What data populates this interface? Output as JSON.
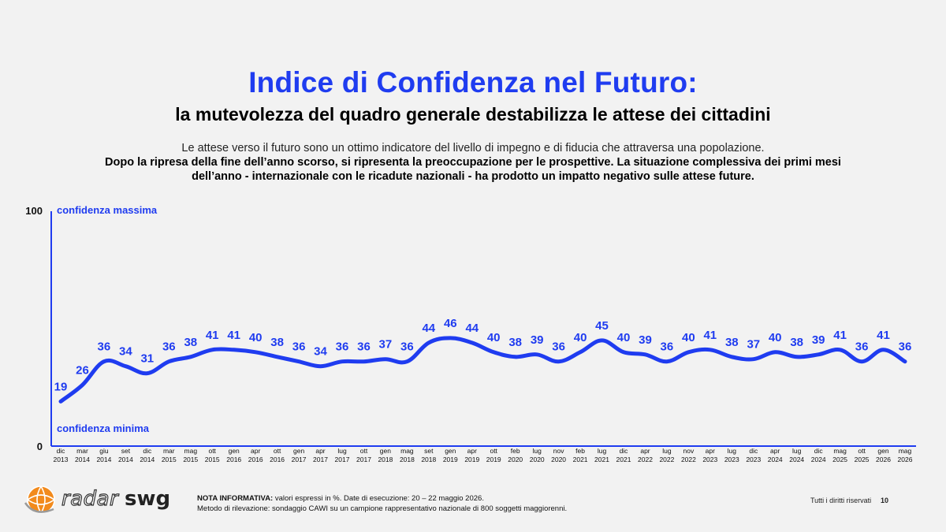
{
  "header": {
    "title": "Indice di Confidenza nel Futuro:",
    "subtitle": "la mutevolezza del quadro generale destabilizza le attese dei cittadini",
    "intro_line1": "Le attese verso il futuro sono un ottimo indicatore del livello di impegno e di fiducia che attraversa una popolazione.",
    "intro_line2": "Dopo la ripresa della fine dell’anno scorso, si ripresenta la preoccupazione per le prospettive. La situazione complessiva dei primi mesi",
    "intro_line3": "dell’anno - internazionale con le ricadute nazionali - ha prodotto un impatto negativo sulle attese future."
  },
  "chart_data": {
    "type": "line",
    "ylim": [
      0,
      100
    ],
    "y_ticks": [
      "0",
      "100"
    ],
    "annotations": {
      "top": "confidenza massima",
      "bottom": "confidenza minima"
    },
    "categories": [
      [
        "dic",
        "2013"
      ],
      [
        "mar",
        "2014"
      ],
      [
        "giu",
        "2014"
      ],
      [
        "set",
        "2014"
      ],
      [
        "dic",
        "2014"
      ],
      [
        "mar",
        "2015"
      ],
      [
        "mag",
        "2015"
      ],
      [
        "ott",
        "2015"
      ],
      [
        "gen",
        "2016"
      ],
      [
        "apr",
        "2016"
      ],
      [
        "ott",
        "2016"
      ],
      [
        "gen",
        "2017"
      ],
      [
        "apr",
        "2017"
      ],
      [
        "lug",
        "2017"
      ],
      [
        "ott",
        "2017"
      ],
      [
        "gen",
        "2018"
      ],
      [
        "mag",
        "2018"
      ],
      [
        "set",
        "2018"
      ],
      [
        "gen",
        "2019"
      ],
      [
        "apr",
        "2019"
      ],
      [
        "ott",
        "2019"
      ],
      [
        "feb",
        "2020"
      ],
      [
        "lug",
        "2020"
      ],
      [
        "nov",
        "2020"
      ],
      [
        "feb",
        "2021"
      ],
      [
        "lug",
        "2021"
      ],
      [
        "dic",
        "2021"
      ],
      [
        "apr",
        "2022"
      ],
      [
        "lug",
        "2022"
      ],
      [
        "nov",
        "2022"
      ],
      [
        "apr",
        "2023"
      ],
      [
        "lug",
        "2023"
      ],
      [
        "dic",
        "2023"
      ],
      [
        "apr",
        "2024"
      ],
      [
        "lug",
        "2024"
      ],
      [
        "dic",
        "2024"
      ],
      [
        "mag",
        "2025"
      ],
      [
        "ott",
        "2025"
      ],
      [
        "gen",
        "2026"
      ],
      [
        "mag",
        "2026"
      ]
    ],
    "series": [
      {
        "values": [
          19,
          26,
          36,
          34,
          31,
          36,
          38,
          41,
          41,
          40,
          38,
          36,
          34,
          36,
          36,
          37,
          36,
          44,
          46,
          44,
          40,
          38,
          39,
          36,
          40,
          45,
          40,
          39,
          36,
          40,
          41,
          38,
          37,
          40,
          38,
          39,
          41,
          36,
          41,
          36
        ]
      }
    ],
    "colors": {
      "line": "#1f3cf0",
      "axis": "#1f3cf0"
    }
  },
  "footer": {
    "logo_radar": "radar",
    "logo_swg": "swg",
    "note_label": "NOTA INFORMATIVA:",
    "note_text": " valori espressi in %. Date di esecuzione: 20 – 22 maggio 2026.",
    "method": "Metodo di rilevazione: sondaggio CAWI su un campione rappresentativo nazionale di 800 soggetti maggiorenni.",
    "rights": "Tutti i diritti riservati",
    "page": "10"
  }
}
